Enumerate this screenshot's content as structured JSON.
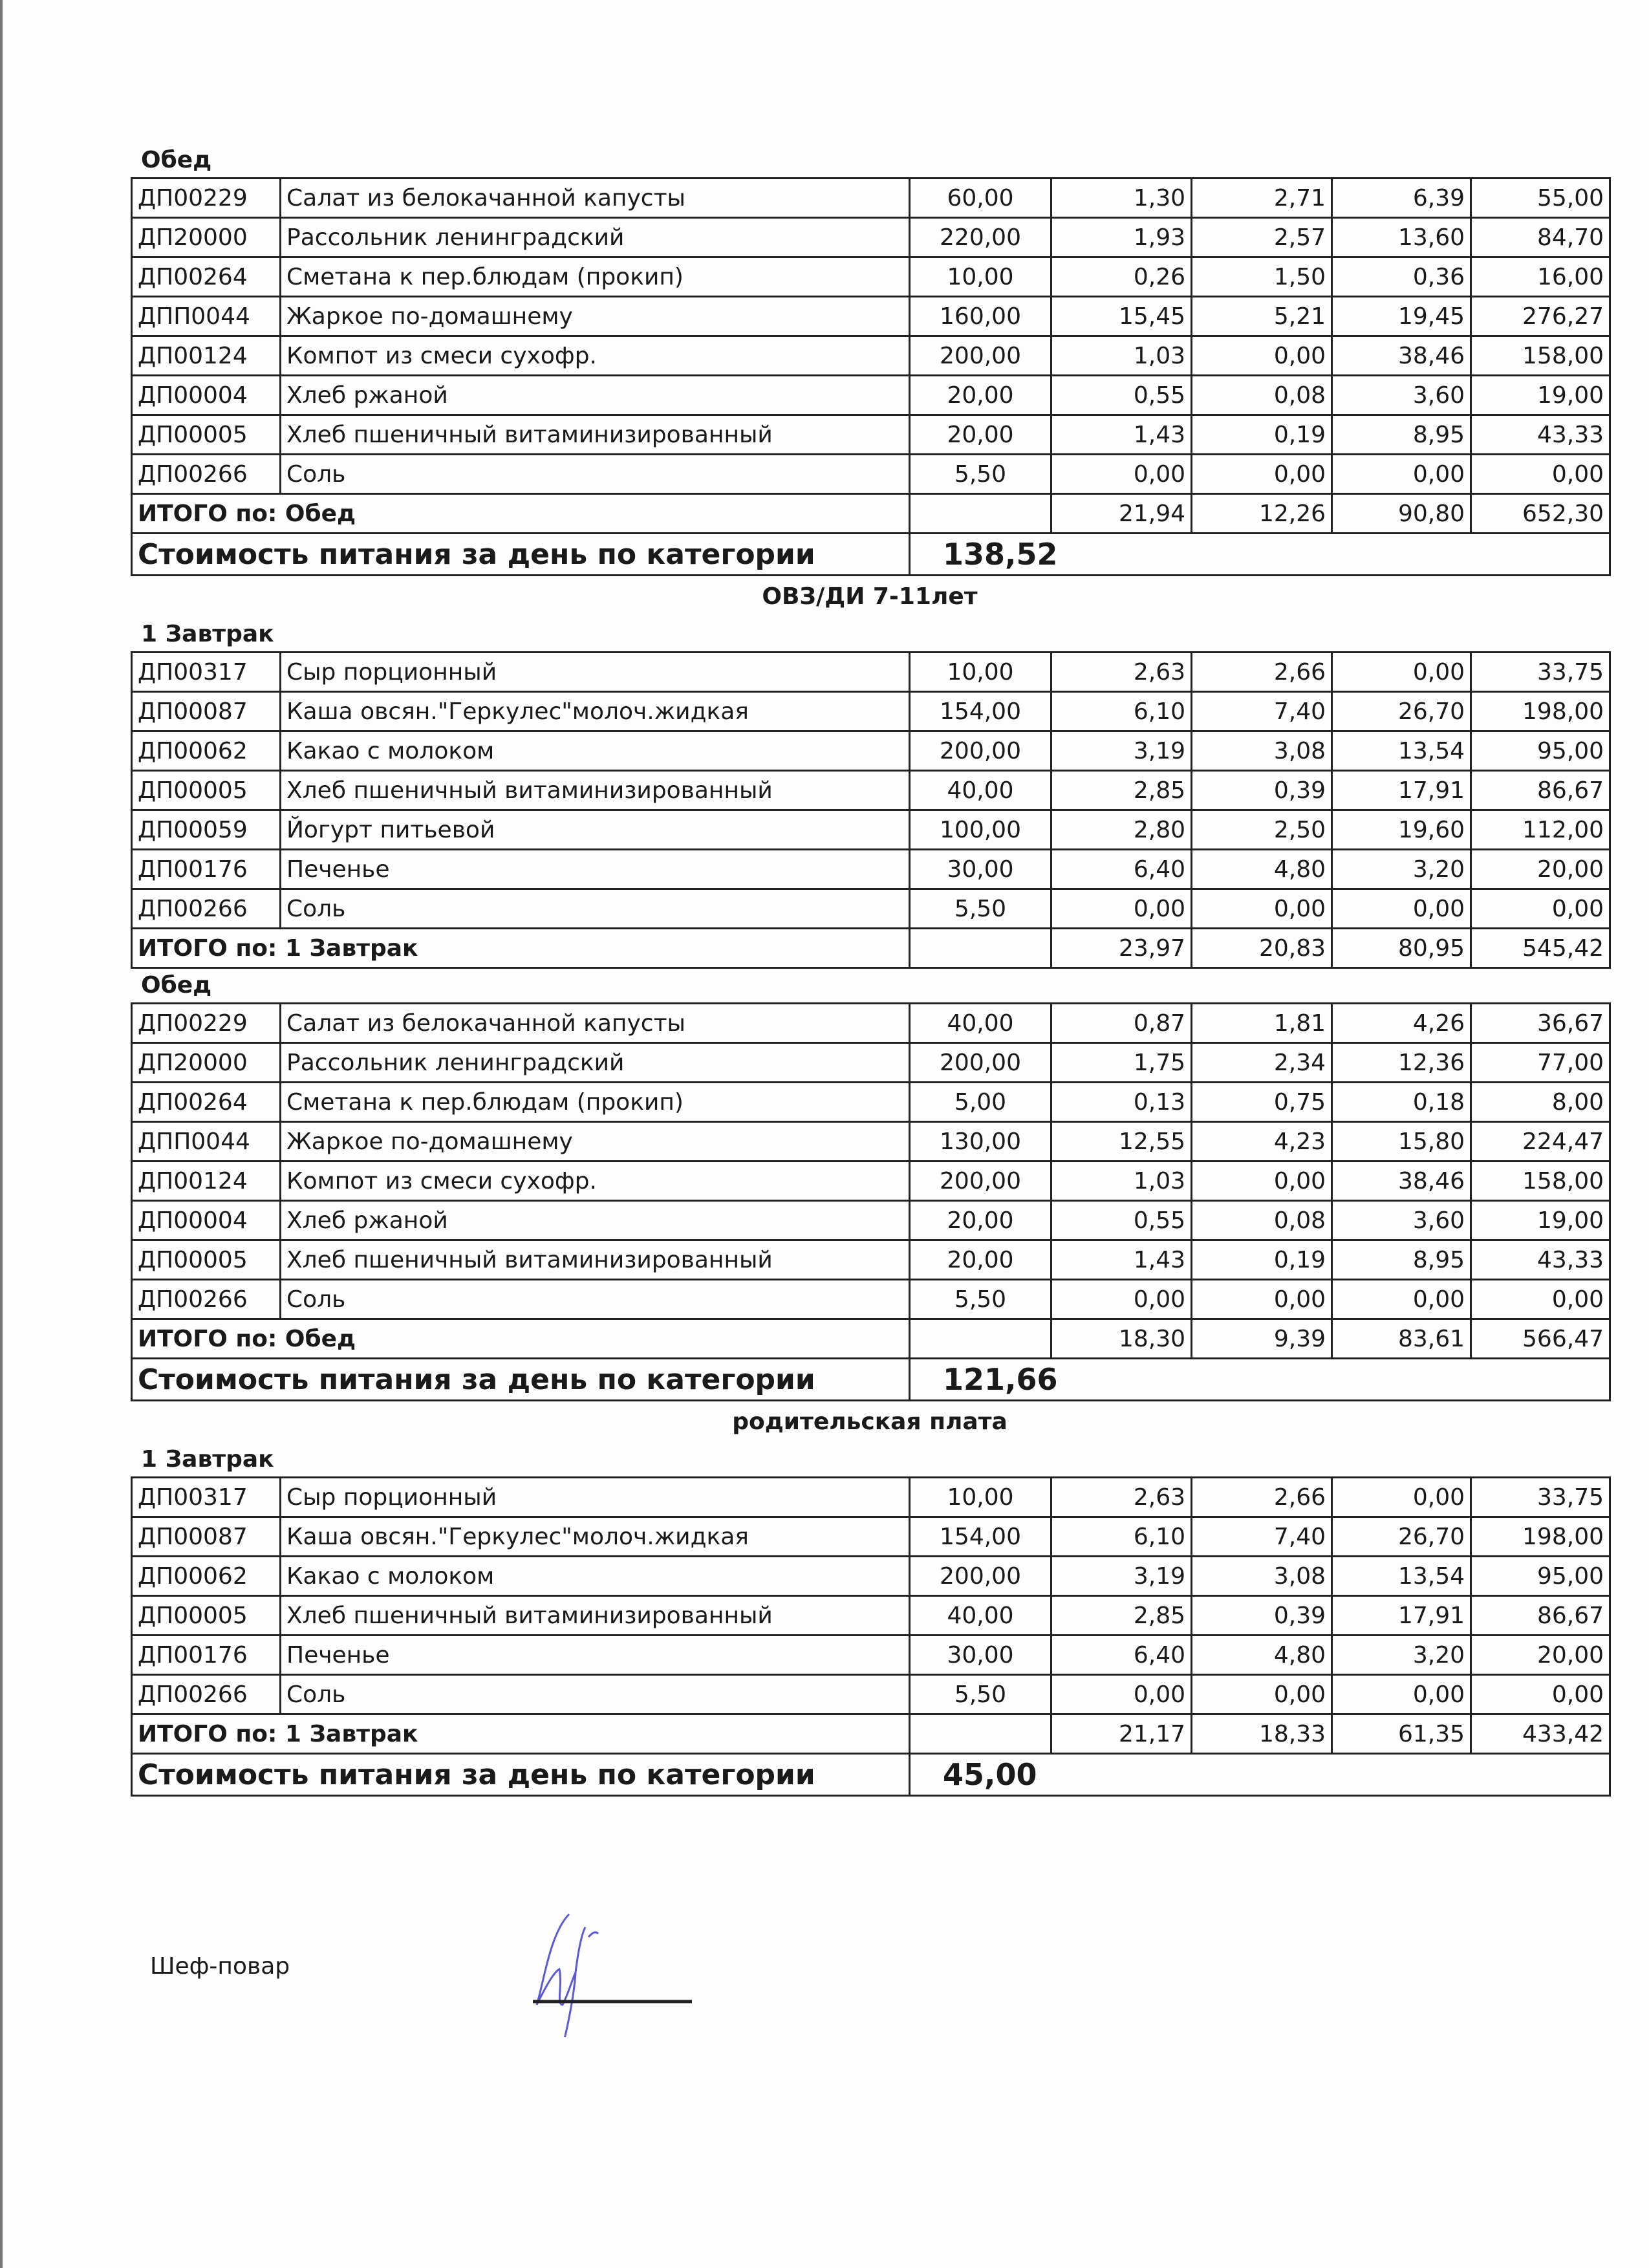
{
  "sections": [
    {
      "category": "",
      "meals": [
        {
          "label": "Обед",
          "rows": [
            [
              "ДП00229",
              "Салат из белокачанной капусты",
              "60,00",
              "1,30",
              "2,71",
              "6,39",
              "55,00"
            ],
            [
              "ДП20000",
              "Рассольник ленинградский",
              "220,00",
              "1,93",
              "2,57",
              "13,60",
              "84,70"
            ],
            [
              "ДП00264",
              "Сметана к пер.блюдам (прокип)",
              "10,00",
              "0,26",
              "1,50",
              "0,36",
              "16,00"
            ],
            [
              "ДПП0044",
              "Жаркое по-домашнему",
              "160,00",
              "15,45",
              "5,21",
              "19,45",
              "276,27"
            ],
            [
              "ДП00124",
              "Компот из смеси сухофр.",
              "200,00",
              "1,03",
              "0,00",
              "38,46",
              "158,00"
            ],
            [
              "ДП00004",
              "Хлеб ржаной",
              "20,00",
              "0,55",
              "0,08",
              "3,60",
              "19,00"
            ],
            [
              "ДП00005",
              "Хлеб пшеничный витаминизированный",
              "20,00",
              "1,43",
              "0,19",
              "8,95",
              "43,33"
            ],
            [
              "ДП00266",
              "Соль",
              "5,50",
              "0,00",
              "0,00",
              "0,00",
              "0,00"
            ]
          ],
          "total": [
            "ИТОГО по: Обед",
            "21,94",
            "12,26",
            "90,80",
            "652,30"
          ]
        }
      ],
      "cost_label": "Стоимость питания за день по категории",
      "cost_value": "138,52"
    },
    {
      "category": "ОВЗ/ДИ 7-11лет",
      "meals": [
        {
          "label": "1 Завтрак",
          "rows": [
            [
              "ДП00317",
              "Сыр порционный",
              "10,00",
              "2,63",
              "2,66",
              "0,00",
              "33,75"
            ],
            [
              "ДП00087",
              "Каша овсян.\"Геркулес\"молоч.жидкая",
              "154,00",
              "6,10",
              "7,40",
              "26,70",
              "198,00"
            ],
            [
              "ДП00062",
              "Какао с молоком",
              "200,00",
              "3,19",
              "3,08",
              "13,54",
              "95,00"
            ],
            [
              "ДП00005",
              "Хлеб пшеничный витаминизированный",
              "40,00",
              "2,85",
              "0,39",
              "17,91",
              "86,67"
            ],
            [
              "ДП00059",
              "Йогурт питьевой",
              "100,00",
              "2,80",
              "2,50",
              "19,60",
              "112,00"
            ],
            [
              "ДП00176",
              "Печенье",
              "30,00",
              "6,40",
              "4,80",
              "3,20",
              "20,00"
            ],
            [
              "ДП00266",
              "Соль",
              "5,50",
              "0,00",
              "0,00",
              "0,00",
              "0,00"
            ]
          ],
          "total": [
            "ИТОГО по: 1 Завтрак",
            "23,97",
            "20,83",
            "80,95",
            "545,42"
          ]
        },
        {
          "label": "Обед",
          "rows": [
            [
              "ДП00229",
              "Салат из белокачанной капусты",
              "40,00",
              "0,87",
              "1,81",
              "4,26",
              "36,67"
            ],
            [
              "ДП20000",
              "Рассольник ленинградский",
              "200,00",
              "1,75",
              "2,34",
              "12,36",
              "77,00"
            ],
            [
              "ДП00264",
              "Сметана к пер.блюдам (прокип)",
              "5,00",
              "0,13",
              "0,75",
              "0,18",
              "8,00"
            ],
            [
              "ДПП0044",
              "Жаркое по-домашнему",
              "130,00",
              "12,55",
              "4,23",
              "15,80",
              "224,47"
            ],
            [
              "ДП00124",
              "Компот из смеси сухофр.",
              "200,00",
              "1,03",
              "0,00",
              "38,46",
              "158,00"
            ],
            [
              "ДП00004",
              "Хлеб ржаной",
              "20,00",
              "0,55",
              "0,08",
              "3,60",
              "19,00"
            ],
            [
              "ДП00005",
              "Хлеб пшеничный витаминизированный",
              "20,00",
              "1,43",
              "0,19",
              "8,95",
              "43,33"
            ],
            [
              "ДП00266",
              "Соль",
              "5,50",
              "0,00",
              "0,00",
              "0,00",
              "0,00"
            ]
          ],
          "total": [
            "ИТОГО по: Обед",
            "18,30",
            "9,39",
            "83,61",
            "566,47"
          ]
        }
      ],
      "cost_label": "Стоимость питания за день по категории",
      "cost_value": "121,66"
    },
    {
      "category": "родительская плата",
      "meals": [
        {
          "label": "1 Завтрак",
          "rows": [
            [
              "ДП00317",
              "Сыр порционный",
              "10,00",
              "2,63",
              "2,66",
              "0,00",
              "33,75"
            ],
            [
              "ДП00087",
              "Каша овсян.\"Геркулес\"молоч.жидкая",
              "154,00",
              "6,10",
              "7,40",
              "26,70",
              "198,00"
            ],
            [
              "ДП00062",
              "Какао с молоком",
              "200,00",
              "3,19",
              "3,08",
              "13,54",
              "95,00"
            ],
            [
              "ДП00005",
              "Хлеб пшеничный витаминизированный",
              "40,00",
              "2,85",
              "0,39",
              "17,91",
              "86,67"
            ],
            [
              "ДП00176",
              "Печенье",
              "30,00",
              "6,40",
              "4,80",
              "3,20",
              "20,00"
            ],
            [
              "ДП00266",
              "Соль",
              "5,50",
              "0,00",
              "0,00",
              "0,00",
              "0,00"
            ]
          ],
          "total": [
            "ИТОГО по: 1 Завтрак",
            "21,17",
            "18,33",
            "61,35",
            "433,42"
          ]
        }
      ],
      "cost_label": "Стоимость питания за день по категории",
      "cost_value": "45,00"
    }
  ],
  "footer": {
    "role": "Шеф-повар",
    "signature_color": "#5a5ad8"
  }
}
